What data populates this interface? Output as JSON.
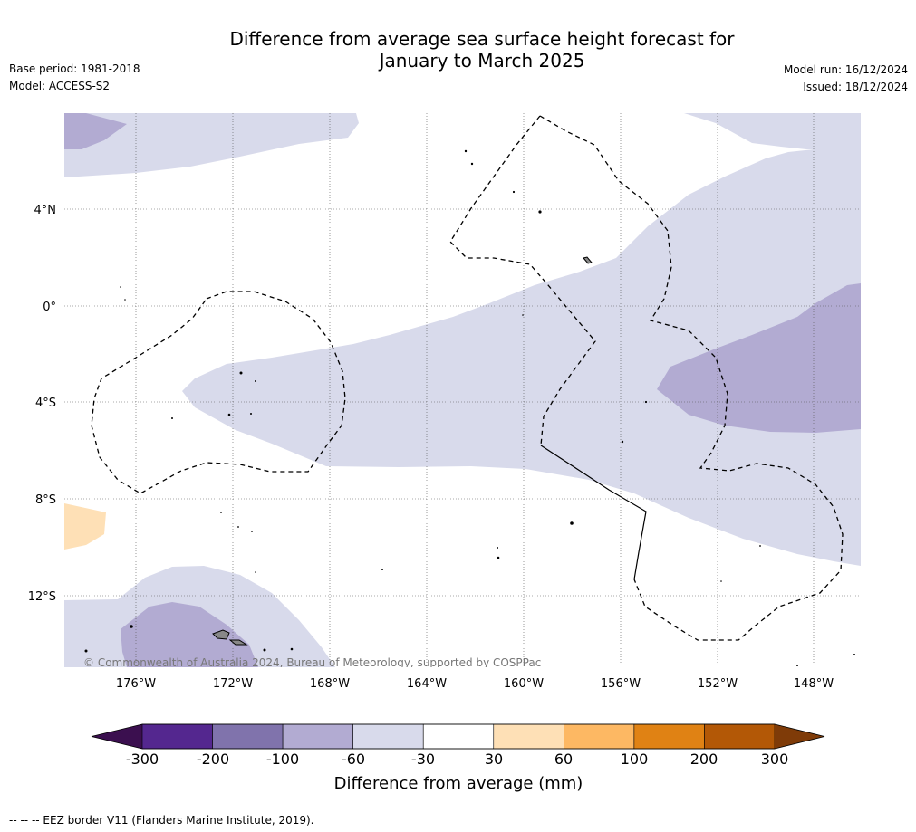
{
  "title_line1": "Difference from average sea surface height forecast for",
  "title_line2": "January to March 2025",
  "base_period": "Base period: 1981-2018",
  "model": "Model: ACCESS-S2",
  "model_run": "Model run: 16/12/2024",
  "issued": "Issued: 18/12/2024",
  "lat_labels": [
    "4°N",
    "0°",
    "4°S",
    "8°S",
    "12°S"
  ],
  "lon_labels": [
    "176°W",
    "172°W",
    "168°W",
    "164°W",
    "160°W",
    "156°W",
    "152°W",
    "148°W"
  ],
  "copyright": "© Commonwealth of Australia 2024, Bureau of Meteorology, supported by COSPPac",
  "colorbar": {
    "title": "Difference from average (mm)",
    "tick_labels": [
      "-300",
      "-200",
      "-100",
      "-60",
      "-30",
      "30",
      "60",
      "100",
      "200",
      "300"
    ],
    "colors": [
      "#3b0f4f",
      "#54278f",
      "#8073ac",
      "#b2abd2",
      "#d8daeb",
      "#ffffff",
      "#fee0b6",
      "#fdb863",
      "#e08214",
      "#b35806",
      "#7f3b08"
    ]
  },
  "legend_note": "--  --  -- EEZ border V11 (Flanders Marine Institute, 2019)."
}
